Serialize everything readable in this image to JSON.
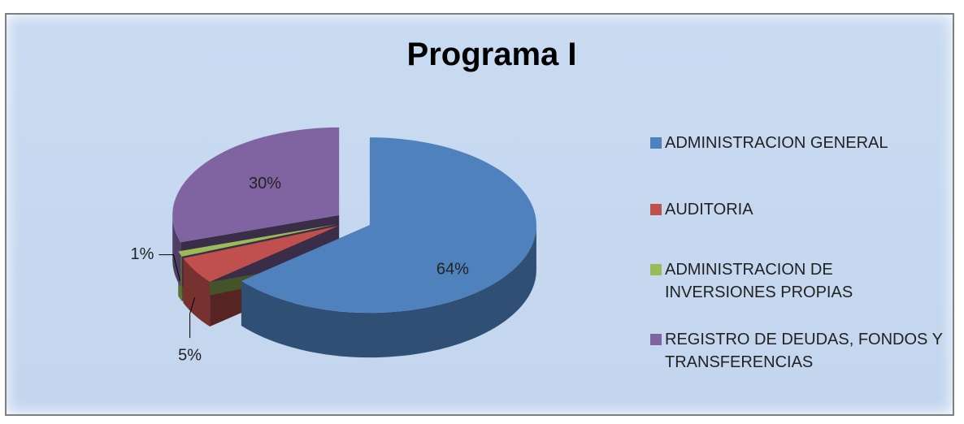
{
  "chart_data": {
    "type": "pie",
    "title": "Programa I",
    "categories": [
      "ADMINISTRACION GENERAL",
      "AUDITORIA",
      "ADMINISTRACION DE INVERSIONES PROPIAS",
      "REGISTRO DE DEUDAS, FONDOS Y TRANSFERENCIAS"
    ],
    "values": [
      64,
      5,
      1,
      30
    ],
    "value_labels": [
      "64%",
      "5%",
      "1%",
      "30%"
    ],
    "colors": [
      "#4f81bd",
      "#c0504d",
      "#9bbb59",
      "#8064a2"
    ],
    "legend": "right"
  }
}
